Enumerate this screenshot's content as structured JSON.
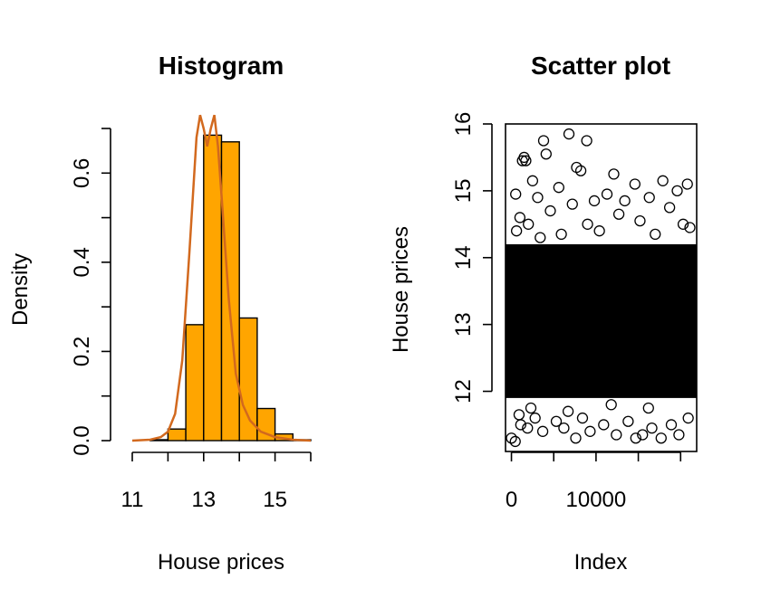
{
  "chart_data": [
    {
      "type": "bar",
      "title": "Histogram",
      "xlabel": "House prices",
      "ylabel": "Density",
      "xlim": [
        11,
        16
      ],
      "ylim": [
        0,
        0.7
      ],
      "x_ticks": [
        11,
        13,
        15
      ],
      "x_tick_marks": [
        11,
        12,
        13,
        14,
        15,
        16
      ],
      "y_ticks": [
        0.0,
        0.2,
        0.4,
        0.6
      ],
      "y_tick_labels": [
        "0.0",
        "0.2",
        "0.4",
        "0.6"
      ],
      "y_tick_marks": [
        0.0,
        0.1,
        0.2,
        0.3,
        0.4,
        0.5,
        0.6,
        0.7
      ],
      "bins": [
        {
          "x0": 11.5,
          "x1": 12.0,
          "density": 0.002
        },
        {
          "x0": 12.0,
          "x1": 12.5,
          "density": 0.026
        },
        {
          "x0": 12.5,
          "x1": 13.0,
          "density": 0.26
        },
        {
          "x0": 13.0,
          "x1": 13.5,
          "density": 0.685
        },
        {
          "x0": 13.5,
          "x1": 14.0,
          "density": 0.67
        },
        {
          "x0": 14.0,
          "x1": 14.5,
          "density": 0.275
        },
        {
          "x0": 14.5,
          "x1": 15.0,
          "density": 0.072
        },
        {
          "x0": 15.0,
          "x1": 15.5,
          "density": 0.015
        },
        {
          "x0": 15.5,
          "x1": 16.0,
          "density": 0.002
        }
      ],
      "density_curve": {
        "x": [
          11.0,
          11.5,
          11.8,
          12.0,
          12.2,
          12.4,
          12.6,
          12.8,
          12.9,
          13.0,
          13.1,
          13.2,
          13.3,
          13.4,
          13.5,
          13.7,
          13.9,
          14.1,
          14.3,
          14.6,
          15.0,
          15.5,
          16.0
        ],
        "y": [
          0.0,
          0.002,
          0.008,
          0.02,
          0.06,
          0.18,
          0.42,
          0.68,
          0.73,
          0.7,
          0.66,
          0.7,
          0.73,
          0.66,
          0.55,
          0.32,
          0.15,
          0.08,
          0.045,
          0.02,
          0.008,
          0.002,
          0.0
        ]
      },
      "colors": {
        "bar_fill": "#FFA500",
        "bar_stroke": "#000000",
        "curve": "#D2691E"
      }
    },
    {
      "type": "scatter",
      "title": "Scatter plot",
      "xlabel": "Index",
      "ylabel": "House prices",
      "xlim": [
        -700,
        21900
      ],
      "ylim": [
        11.1,
        16.0
      ],
      "x_ticks": [
        0,
        10000
      ],
      "x_tick_labels": [
        "0",
        "10000"
      ],
      "x_tick_marks": [
        0,
        5000,
        10000,
        15000,
        20000
      ],
      "y_ticks": [
        12,
        13,
        14,
        15,
        16
      ],
      "marker": "open-circle",
      "core_band": {
        "x_min": -700,
        "x_max": 21900,
        "y_min": 11.9,
        "y_max": 14.2
      },
      "points": [
        {
          "x": 0,
          "y": 11.3
        },
        {
          "x": 450,
          "y": 11.25
        },
        {
          "x": 1100,
          "y": 11.5
        },
        {
          "x": 900,
          "y": 11.65
        },
        {
          "x": 1900,
          "y": 11.45
        },
        {
          "x": 2800,
          "y": 11.6
        },
        {
          "x": 3700,
          "y": 11.4
        },
        {
          "x": 5300,
          "y": 11.55
        },
        {
          "x": 6200,
          "y": 11.45
        },
        {
          "x": 7600,
          "y": 11.3
        },
        {
          "x": 8400,
          "y": 11.6
        },
        {
          "x": 9300,
          "y": 11.4
        },
        {
          "x": 10900,
          "y": 11.5
        },
        {
          "x": 12400,
          "y": 11.35
        },
        {
          "x": 13800,
          "y": 11.55
        },
        {
          "x": 14700,
          "y": 11.3
        },
        {
          "x": 15500,
          "y": 11.35
        },
        {
          "x": 16600,
          "y": 11.45
        },
        {
          "x": 17700,
          "y": 11.3
        },
        {
          "x": 18900,
          "y": 11.5
        },
        {
          "x": 19800,
          "y": 11.35
        },
        {
          "x": 20900,
          "y": 11.6
        },
        {
          "x": 2300,
          "y": 11.75
        },
        {
          "x": 6700,
          "y": 11.7
        },
        {
          "x": 11800,
          "y": 11.8
        },
        {
          "x": 16200,
          "y": 11.75
        },
        {
          "x": 1300,
          "y": 15.45
        },
        {
          "x": 1500,
          "y": 15.5
        },
        {
          "x": 1700,
          "y": 15.45
        },
        {
          "x": 3800,
          "y": 15.75
        },
        {
          "x": 4100,
          "y": 15.55
        },
        {
          "x": 6800,
          "y": 15.85
        },
        {
          "x": 7700,
          "y": 15.35
        },
        {
          "x": 8900,
          "y": 15.75
        },
        {
          "x": 8200,
          "y": 15.3
        },
        {
          "x": 2500,
          "y": 15.15
        },
        {
          "x": 12100,
          "y": 15.25
        },
        {
          "x": 3100,
          "y": 14.9
        },
        {
          "x": 500,
          "y": 14.95
        },
        {
          "x": 5600,
          "y": 15.05
        },
        {
          "x": 9800,
          "y": 14.85
        },
        {
          "x": 14600,
          "y": 15.1
        },
        {
          "x": 17900,
          "y": 15.15
        },
        {
          "x": 19600,
          "y": 15.0
        },
        {
          "x": 20800,
          "y": 15.1
        },
        {
          "x": 16300,
          "y": 14.9
        },
        {
          "x": 11300,
          "y": 14.95
        },
        {
          "x": 13400,
          "y": 14.85
        },
        {
          "x": 7200,
          "y": 14.8
        },
        {
          "x": 4600,
          "y": 14.7
        },
        {
          "x": 1000,
          "y": 14.6
        },
        {
          "x": 18700,
          "y": 14.75
        },
        {
          "x": 9000,
          "y": 14.5
        },
        {
          "x": 15200,
          "y": 14.55
        },
        {
          "x": 20300,
          "y": 14.5
        },
        {
          "x": 600,
          "y": 14.4
        },
        {
          "x": 10400,
          "y": 14.4
        },
        {
          "x": 5900,
          "y": 14.35
        },
        {
          "x": 2000,
          "y": 14.5
        },
        {
          "x": 12700,
          "y": 14.65
        },
        {
          "x": 3400,
          "y": 14.3
        },
        {
          "x": 17000,
          "y": 14.35
        },
        {
          "x": 21100,
          "y": 14.45
        }
      ]
    }
  ]
}
